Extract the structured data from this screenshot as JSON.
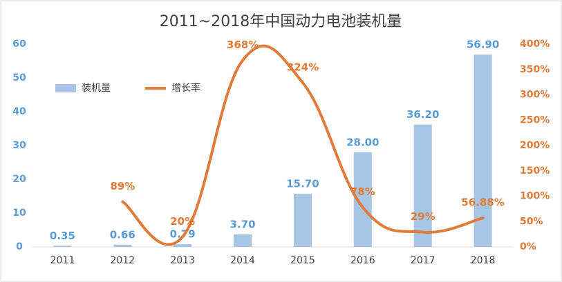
{
  "chart_data": {
    "type": "bar",
    "title": "2011~2018年中国动力电池装机量",
    "categories": [
      "2011",
      "2012",
      "2013",
      "2014",
      "2015",
      "2016",
      "2017",
      "2018"
    ],
    "series": [
      {
        "name": "装机量",
        "type": "bar",
        "color": "#a7c5e5",
        "values": [
          0.35,
          0.66,
          0.79,
          3.7,
          15.7,
          28.0,
          36.2,
          56.9
        ],
        "value_labels": [
          "0.35",
          "0.66",
          "0.79",
          "3.70",
          "15.70",
          "28.00",
          "36.20",
          "56.90"
        ]
      },
      {
        "name": "增长率",
        "type": "line",
        "axis": "y2",
        "color": "#e07b39",
        "values": [
          null,
          89,
          20,
          368,
          324,
          78,
          29,
          56.88
        ],
        "value_labels": [
          null,
          "89%",
          "20%",
          "368%",
          "324%",
          "78%",
          "29%",
          "56.88%"
        ]
      }
    ],
    "ylim": [
      0,
      60
    ],
    "yticks": [
      0,
      10,
      20,
      30,
      40,
      50,
      60
    ],
    "y2lim": [
      0,
      400
    ],
    "y2ticks": [
      {
        "value": 0,
        "label": "0%"
      },
      {
        "value": 50,
        "label": "50%"
      },
      {
        "value": 100,
        "label": "100%"
      },
      {
        "value": 150,
        "label": "150%"
      },
      {
        "value": 200,
        "label": "200%"
      },
      {
        "value": 250,
        "label": "250%"
      },
      {
        "value": 300,
        "label": "300%"
      },
      {
        "value": 350,
        "label": "350%"
      },
      {
        "value": 400,
        "label": "400%"
      }
    ],
    "legend": "upper left"
  }
}
